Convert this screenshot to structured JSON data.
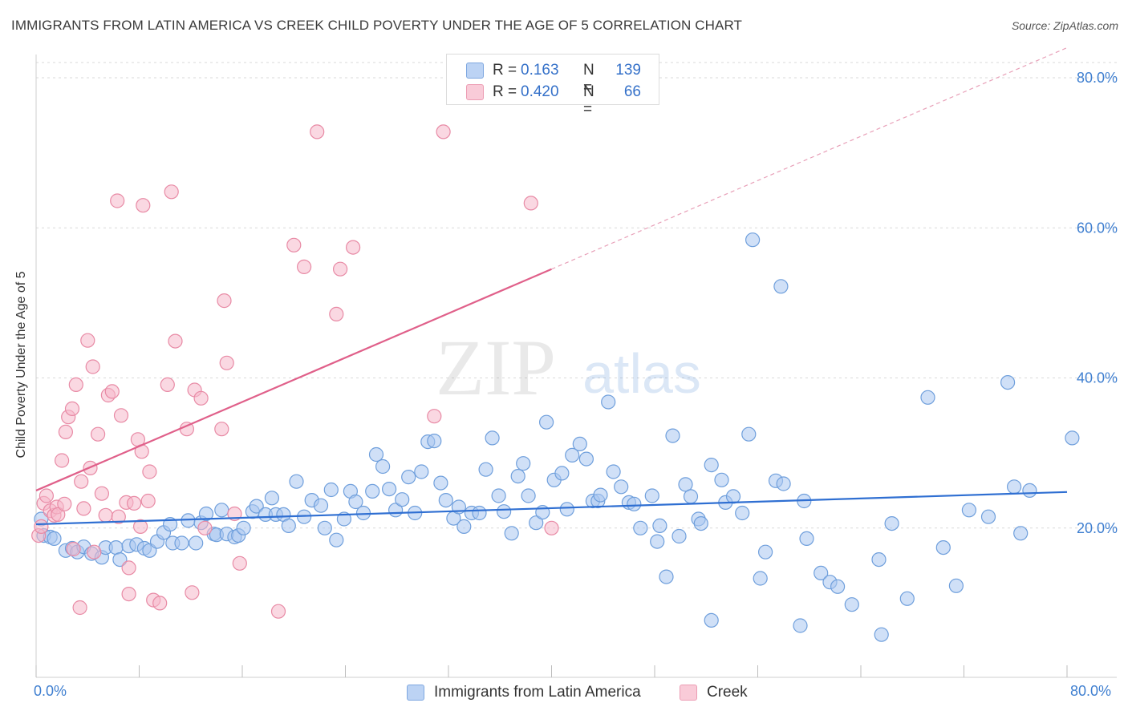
{
  "header": {
    "title": "IMMIGRANTS FROM LATIN AMERICA VS CREEK CHILD POVERTY UNDER THE AGE OF 5 CORRELATION CHART",
    "source": "Source: ZipAtlas.com"
  },
  "legend_top": {
    "rows": [
      {
        "r_label": "R =",
        "r_value": "0.163",
        "n_label": "N =",
        "n_value": "139",
        "color": "#a9c6f0"
      },
      {
        "r_label": "R =",
        "r_value": "0.420",
        "n_label": "N =",
        "n_value": "66",
        "color": "#f5b8ca"
      }
    ]
  },
  "legend_bottom": {
    "items": [
      {
        "label": "Immigrants from Latin America",
        "color": "#a9c6f0"
      },
      {
        "label": "Creek",
        "color": "#f5b8ca"
      }
    ]
  },
  "axes": {
    "x_min_label": "0.0%",
    "x_max_label": "80.0%"
  },
  "watermark": {
    "zip": "ZIP",
    "atlas": "atlas"
  },
  "chart_data": {
    "type": "scatter",
    "title": "IMMIGRANTS FROM LATIN AMERICA VS CREEK CHILD POVERTY UNDER THE AGE OF 5 CORRELATION CHART",
    "xlabel": "",
    "ylabel": "Child Poverty Under the Age of 5",
    "xlim": [
      0,
      84
    ],
    "ylim": [
      0,
      84
    ],
    "y_ticks": [
      20,
      40,
      60,
      80
    ],
    "y_tick_labels": [
      "20.0%",
      "40.0%",
      "60.0%",
      "80.0%"
    ],
    "x_ticks": [
      0,
      8,
      16,
      24,
      32,
      40,
      48,
      56,
      64,
      72,
      80
    ],
    "grid": true,
    "legend": "top-center",
    "series": [
      {
        "name": "Immigrants from Latin America",
        "color": "#a9c6f0",
        "stroke": "#6f9fdc",
        "trend": {
          "x0": 0,
          "y0": 20.5,
          "x1": 80,
          "y1": 24.8,
          "color": "#2f6fd2"
        },
        "points": [
          [
            0.4,
            21.2
          ],
          [
            0.6,
            19.0
          ],
          [
            1.1,
            18.8
          ],
          [
            1.4,
            18.6
          ],
          [
            2.3,
            17.0
          ],
          [
            2.8,
            17.3
          ],
          [
            3.2,
            16.8
          ],
          [
            3.7,
            17.5
          ],
          [
            4.3,
            16.6
          ],
          [
            5.1,
            16.1
          ],
          [
            5.4,
            17.4
          ],
          [
            6.2,
            17.4
          ],
          [
            6.5,
            15.8
          ],
          [
            7.2,
            17.6
          ],
          [
            7.8,
            17.8
          ],
          [
            8.4,
            17.3
          ],
          [
            8.8,
            17.0
          ],
          [
            9.4,
            18.2
          ],
          [
            9.9,
            19.4
          ],
          [
            10.4,
            20.5
          ],
          [
            10.6,
            18.0
          ],
          [
            11.3,
            18.0
          ],
          [
            11.8,
            21.0
          ],
          [
            12.4,
            18.0
          ],
          [
            12.8,
            20.7
          ],
          [
            13.2,
            21.9
          ],
          [
            13.8,
            19.2
          ],
          [
            14.0,
            19.1
          ],
          [
            14.4,
            22.4
          ],
          [
            14.8,
            19.2
          ],
          [
            15.4,
            18.8
          ],
          [
            15.7,
            19.0
          ],
          [
            16.1,
            20.0
          ],
          [
            16.8,
            22.2
          ],
          [
            17.1,
            22.9
          ],
          [
            17.8,
            21.8
          ],
          [
            18.3,
            24.0
          ],
          [
            18.6,
            21.8
          ],
          [
            19.2,
            21.8
          ],
          [
            19.6,
            20.3
          ],
          [
            20.2,
            26.2
          ],
          [
            20.8,
            21.5
          ],
          [
            21.4,
            23.7
          ],
          [
            22.1,
            23.0
          ],
          [
            22.4,
            20.0
          ],
          [
            22.9,
            25.1
          ],
          [
            23.3,
            18.4
          ],
          [
            23.9,
            21.2
          ],
          [
            24.4,
            24.9
          ],
          [
            24.8,
            23.5
          ],
          [
            25.4,
            22.0
          ],
          [
            26.1,
            24.9
          ],
          [
            26.4,
            29.8
          ],
          [
            26.9,
            28.2
          ],
          [
            27.4,
            25.2
          ],
          [
            27.9,
            22.4
          ],
          [
            28.4,
            23.8
          ],
          [
            28.9,
            26.8
          ],
          [
            29.4,
            22.0
          ],
          [
            29.9,
            27.5
          ],
          [
            30.4,
            31.5
          ],
          [
            30.9,
            31.6
          ],
          [
            31.4,
            26.0
          ],
          [
            31.8,
            23.7
          ],
          [
            32.4,
            21.3
          ],
          [
            32.8,
            22.8
          ],
          [
            33.2,
            20.2
          ],
          [
            33.8,
            22.0
          ],
          [
            34.4,
            22.0
          ],
          [
            34.9,
            27.8
          ],
          [
            35.4,
            32.0
          ],
          [
            35.9,
            24.3
          ],
          [
            36.3,
            22.2
          ],
          [
            36.9,
            19.3
          ],
          [
            37.4,
            26.9
          ],
          [
            37.8,
            28.6
          ],
          [
            38.2,
            24.3
          ],
          [
            38.8,
            20.7
          ],
          [
            39.3,
            22.1
          ],
          [
            39.6,
            34.1
          ],
          [
            40.2,
            26.4
          ],
          [
            40.8,
            27.3
          ],
          [
            41.2,
            22.5
          ],
          [
            41.6,
            29.7
          ],
          [
            42.2,
            31.2
          ],
          [
            42.7,
            29.2
          ],
          [
            43.2,
            23.6
          ],
          [
            43.6,
            23.6
          ],
          [
            43.8,
            24.4
          ],
          [
            44.4,
            36.8
          ],
          [
            44.8,
            27.5
          ],
          [
            45.4,
            25.5
          ],
          [
            46.0,
            23.4
          ],
          [
            46.4,
            23.2
          ],
          [
            46.9,
            20.0
          ],
          [
            47.8,
            24.3
          ],
          [
            48.2,
            18.2
          ],
          [
            48.4,
            20.3
          ],
          [
            48.9,
            13.5
          ],
          [
            49.4,
            32.3
          ],
          [
            49.9,
            18.9
          ],
          [
            50.4,
            25.8
          ],
          [
            50.8,
            24.2
          ],
          [
            51.4,
            21.2
          ],
          [
            51.6,
            20.6
          ],
          [
            52.4,
            7.7
          ],
          [
            52.4,
            28.4
          ],
          [
            53.2,
            26.4
          ],
          [
            53.5,
            23.4
          ],
          [
            54.1,
            24.2
          ],
          [
            54.8,
            22.0
          ],
          [
            55.3,
            32.5
          ],
          [
            55.6,
            58.4
          ],
          [
            56.2,
            13.3
          ],
          [
            56.6,
            16.8
          ],
          [
            57.4,
            26.3
          ],
          [
            57.8,
            52.2
          ],
          [
            58.0,
            25.9
          ],
          [
            59.3,
            7.0
          ],
          [
            59.6,
            23.6
          ],
          [
            59.8,
            18.6
          ],
          [
            60.9,
            14.0
          ],
          [
            61.6,
            12.8
          ],
          [
            62.2,
            12.2
          ],
          [
            63.3,
            9.8
          ],
          [
            65.4,
            15.8
          ],
          [
            65.6,
            5.8
          ],
          [
            66.4,
            20.6
          ],
          [
            67.6,
            10.6
          ],
          [
            69.2,
            37.4
          ],
          [
            70.4,
            17.4
          ],
          [
            71.4,
            12.3
          ],
          [
            72.4,
            22.4
          ],
          [
            73.9,
            21.5
          ],
          [
            75.4,
            39.4
          ],
          [
            75.9,
            25.5
          ],
          [
            76.4,
            19.3
          ],
          [
            77.1,
            25.0
          ],
          [
            80.4,
            32.0
          ]
        ]
      },
      {
        "name": "Creek",
        "color": "#f5b8ca",
        "stroke": "#e88aa5",
        "trend": {
          "x0": 0,
          "y0": 25.0,
          "x1": 40,
          "y1": 54.5,
          "dash_x1": 80,
          "dash_y1": 84.0,
          "color": "#e0608a"
        },
        "points": [
          [
            0.2,
            19.0
          ],
          [
            0.4,
            20.2
          ],
          [
            0.6,
            23.3
          ],
          [
            0.8,
            24.3
          ],
          [
            1.1,
            22.3
          ],
          [
            1.4,
            21.7
          ],
          [
            1.6,
            22.8
          ],
          [
            1.7,
            21.8
          ],
          [
            2.0,
            29.0
          ],
          [
            2.2,
            23.2
          ],
          [
            2.3,
            32.8
          ],
          [
            2.5,
            34.8
          ],
          [
            2.8,
            35.9
          ],
          [
            2.9,
            17.2
          ],
          [
            3.1,
            39.1
          ],
          [
            3.4,
            9.4
          ],
          [
            3.5,
            26.2
          ],
          [
            3.7,
            22.6
          ],
          [
            4.0,
            45.0
          ],
          [
            4.2,
            28.0
          ],
          [
            4.4,
            41.5
          ],
          [
            4.5,
            16.8
          ],
          [
            4.8,
            32.5
          ],
          [
            5.1,
            24.6
          ],
          [
            5.4,
            21.7
          ],
          [
            5.6,
            37.7
          ],
          [
            5.9,
            38.2
          ],
          [
            6.3,
            63.6
          ],
          [
            6.4,
            21.5
          ],
          [
            6.6,
            35.0
          ],
          [
            7.0,
            23.4
          ],
          [
            7.2,
            14.7
          ],
          [
            7.2,
            11.2
          ],
          [
            7.6,
            23.3
          ],
          [
            7.9,
            31.8
          ],
          [
            8.1,
            20.2
          ],
          [
            8.2,
            30.2
          ],
          [
            8.3,
            63.0
          ],
          [
            8.7,
            23.6
          ],
          [
            8.8,
            27.5
          ],
          [
            9.1,
            10.4
          ],
          [
            9.6,
            10.0
          ],
          [
            10.2,
            39.1
          ],
          [
            10.5,
            64.8
          ],
          [
            10.8,
            44.9
          ],
          [
            11.7,
            33.2
          ],
          [
            12.1,
            11.4
          ],
          [
            12.3,
            38.4
          ],
          [
            12.8,
            37.3
          ],
          [
            13.1,
            20.0
          ],
          [
            14.4,
            33.2
          ],
          [
            14.6,
            50.3
          ],
          [
            14.8,
            42.0
          ],
          [
            15.4,
            21.9
          ],
          [
            15.8,
            15.3
          ],
          [
            18.8,
            8.9
          ],
          [
            20.0,
            57.7
          ],
          [
            20.8,
            54.8
          ],
          [
            21.8,
            72.8
          ],
          [
            23.3,
            48.5
          ],
          [
            23.6,
            54.5
          ],
          [
            24.6,
            57.4
          ],
          [
            30.9,
            34.9
          ],
          [
            31.6,
            72.8
          ],
          [
            38.4,
            63.3
          ],
          [
            40.0,
            20.0
          ]
        ]
      }
    ]
  }
}
